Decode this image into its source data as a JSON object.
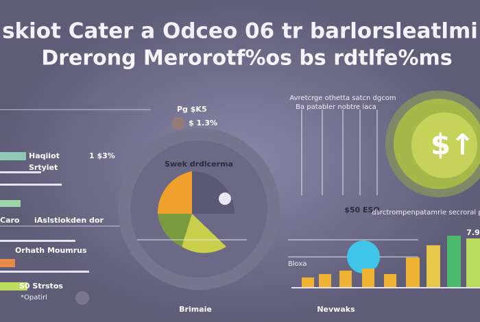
{
  "header": {
    "title": "skiot Cater a Odceo 06 tr barlorsleatlmi",
    "subtitle": "Drerong Merorotf%os bs rdtlfe%ms"
  },
  "left_panel": {
    "tag": "Pg $K5",
    "rate": "$ 1.3%",
    "items": [
      "Haqiiot",
      "Srtylet",
      "1 $3%",
      "iAslstiokden dor",
      "Caro",
      "Orhath Moumrus",
      "S0 Strstos",
      "*Opatirl"
    ]
  },
  "donut": {
    "title": "Swek drdlcerma"
  },
  "right_panel": {
    "heading": "Avretcrge othetta satcn dgcom",
    "subheading": "Ba patabler nobtre iaca",
    "side_note": "dsrctrompenpatamrie secroral prodlagea",
    "mid_label": "$50 ESO",
    "bar_label": "Bloxa",
    "value": "7.9"
  },
  "coin": {
    "symbol": "$↑"
  },
  "footer": {
    "left": "Brimaie",
    "right": "Nevwaks"
  }
}
